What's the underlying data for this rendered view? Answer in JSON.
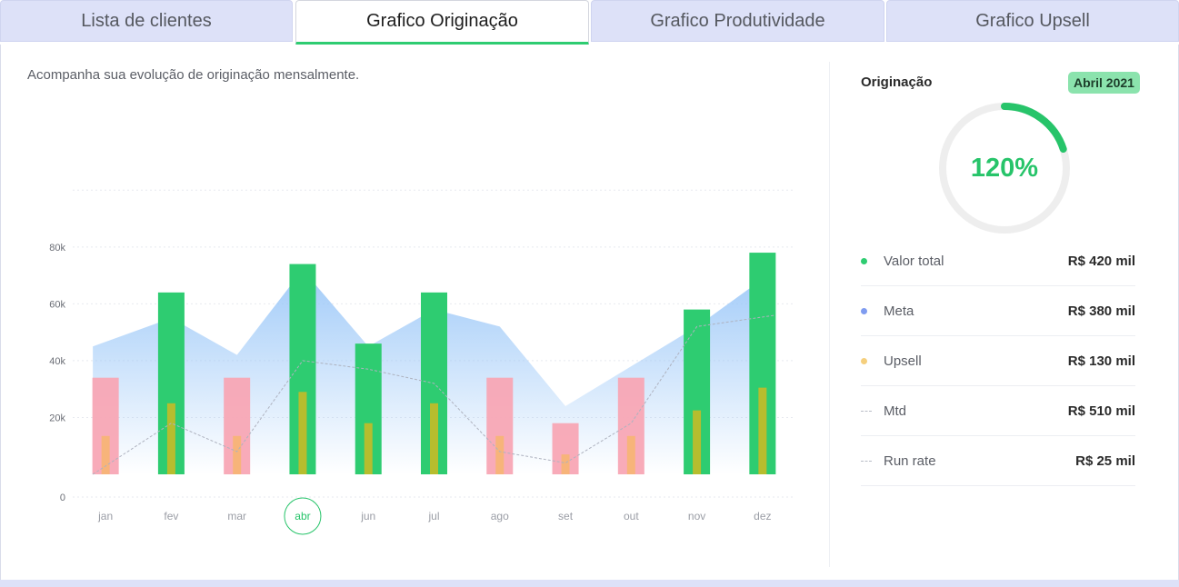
{
  "tabs": [
    {
      "label": "Lista de clientes",
      "active": false
    },
    {
      "label": "Grafico Originação",
      "active": true
    },
    {
      "label": "Grafico Produtividade",
      "active": false
    },
    {
      "label": "Grafico Upsell",
      "active": false
    }
  ],
  "subtitle": "Acompanha sua evolução de originação mensalmente.",
  "chart_data": {
    "type": "bar",
    "categories": [
      "jan",
      "fev",
      "mar",
      "abr",
      "jun",
      "jul",
      "ago",
      "set",
      "out",
      "nov",
      "dez"
    ],
    "highlighted_category": "abr",
    "yticks": [
      "0",
      "20k",
      "40k",
      "60k",
      "80k"
    ],
    "ylim": [
      0,
      110000
    ],
    "grid": true,
    "series": [
      {
        "kind": "bar-main",
        "values": [
          34000,
          64000,
          34000,
          74000,
          46000,
          64000,
          34000,
          18000,
          34000,
          58000,
          78000
        ],
        "colors": [
          "#f8a7b5",
          "#2ecc71",
          "#f8a7b5",
          "#2ecc71",
          "#2ecc71",
          "#2ecc71",
          "#f8a7b5",
          "#f8a7b5",
          "#f8a7b5",
          "#2ecc71",
          "#2ecc71"
        ]
      },
      {
        "kind": "bar-inner",
        "values": [
          13500,
          25000,
          13500,
          29000,
          18000,
          25000,
          13500,
          7000,
          13500,
          22500,
          30500
        ],
        "colors": [
          "#f7b47a",
          "#b6bd2e",
          "#f7b47a",
          "#b6bd2e",
          "#b6bd2e",
          "#b6bd2e",
          "#f7b47a",
          "#f7b47a",
          "#f7b47a",
          "#b6bd2e",
          "#b6bd2e"
        ]
      },
      {
        "kind": "area",
        "values": [
          45000,
          55000,
          42000,
          72000,
          45000,
          58000,
          52000,
          24000,
          38000,
          52000,
          72000
        ],
        "color": "#9cc8f8"
      },
      {
        "kind": "dashed-line",
        "values": [
          0,
          18000,
          8000,
          40000,
          37000,
          32000,
          8000,
          4000,
          18000,
          52000,
          56000
        ],
        "color": "#aeb2bf"
      }
    ]
  },
  "side": {
    "title": "Originação",
    "period": "Abril 2021",
    "gauge_value": "120%",
    "gauge_fraction": 0.2,
    "gauge_color": "#27c46a",
    "gauge_track": "#eeeeee",
    "legend": [
      {
        "marker": "dot",
        "color": "#2ecc71",
        "label": "Valor total",
        "value": "R$ 420 mil"
      },
      {
        "marker": "dot",
        "color": "#7f9cf0",
        "label": "Meta",
        "value": "R$ 380 mil"
      },
      {
        "marker": "dot",
        "color": "#f5cf7d",
        "label": "Upsell",
        "value": "R$ 130 mil"
      },
      {
        "marker": "dash",
        "color": "#b8bcc6",
        "label": "Mtd",
        "value": "R$ 510 mil"
      },
      {
        "marker": "dash",
        "color": "#b8bcc6",
        "label": "Run rate",
        "value": "R$ 25 mil"
      }
    ]
  }
}
